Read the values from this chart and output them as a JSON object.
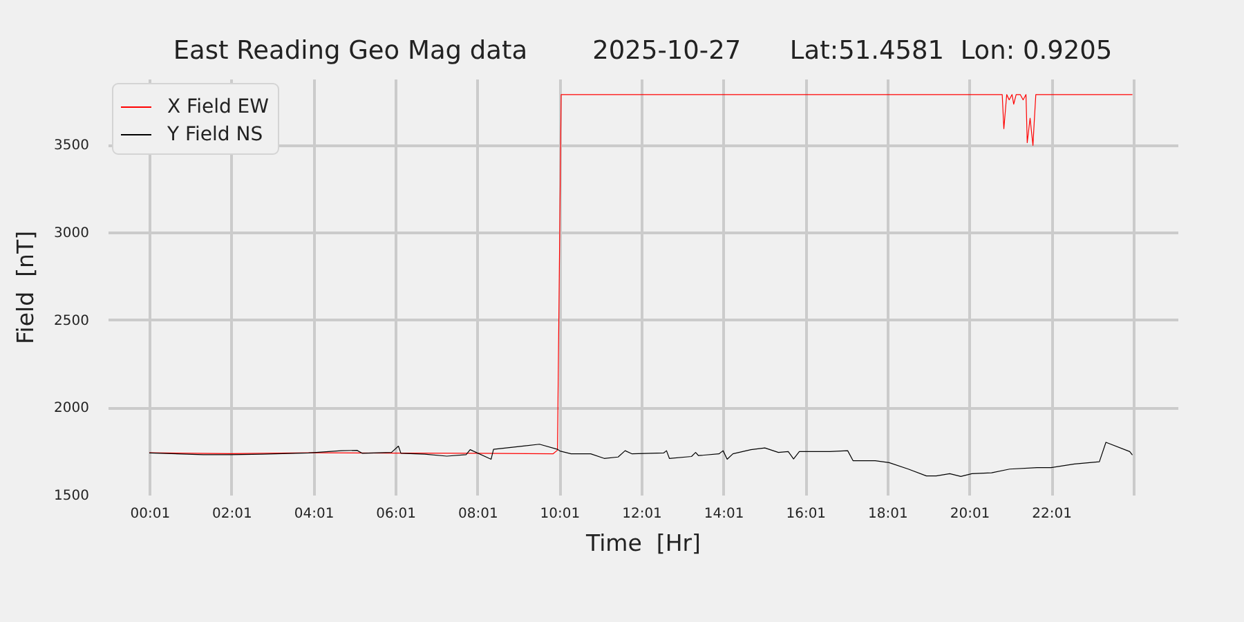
{
  "chart_data": {
    "type": "line",
    "title": "East Reading Geo Mag data        2025-10-27      Lat:51.4581  Lon: 0.9205",
    "xlabel": "Time  [Hr]",
    "ylabel": "Field  [nT]",
    "xlim": [
      -1.0,
      25.1
    ],
    "xticks": [
      {
        "value": 0.0167,
        "label": "00:01"
      },
      {
        "value": 2.0167,
        "label": "02:01"
      },
      {
        "value": 4.0167,
        "label": "04:01"
      },
      {
        "value": 6.0167,
        "label": "06:01"
      },
      {
        "value": 8.0167,
        "label": "08:01"
      },
      {
        "value": 10.0167,
        "label": "10:01"
      },
      {
        "value": 12.0167,
        "label": "12:01"
      },
      {
        "value": 14.0167,
        "label": "14:01"
      },
      {
        "value": 16.0167,
        "label": "16:01"
      },
      {
        "value": 18.0167,
        "label": "18:01"
      },
      {
        "value": 20.0167,
        "label": "20:01"
      },
      {
        "value": 22.0167,
        "label": "22:01"
      },
      {
        "value": 24.0167,
        "label": null
      }
    ],
    "ylim": [
      1500,
      3875
    ],
    "yticks": [
      1500,
      2000,
      2500,
      3000,
      3500
    ],
    "grid": true,
    "legend": "top left",
    "series": [
      {
        "name": "X Field EW",
        "color": "#ff0000",
        "x": [
          0.02,
          2.0,
          4.0,
          6.0,
          8.0,
          9.86,
          9.97,
          10.06,
          12.0,
          16.0,
          20.0,
          20.82,
          20.86,
          20.93,
          20.99,
          21.06,
          21.1,
          21.16,
          21.26,
          21.33,
          21.4,
          21.43,
          21.5,
          21.57,
          21.6,
          21.64,
          22.5,
          23.99
        ],
        "values": [
          1740,
          1735,
          1740,
          1738,
          1737,
          1734,
          1755,
          3785,
          3785,
          3785,
          3785,
          3785,
          3590,
          3785,
          3755,
          3785,
          3730,
          3785,
          3785,
          3755,
          3785,
          3510,
          3650,
          3495,
          3625,
          3785,
          3785,
          3785
        ]
      },
      {
        "name": "Y Field NS",
        "color": "#000000",
        "x": [
          0.02,
          1.33,
          2.01,
          2.78,
          3.9,
          4.7,
          5.08,
          5.21,
          5.92,
          6.09,
          6.15,
          6.73,
          7.27,
          7.74,
          7.84,
          8.35,
          8.41,
          8.95,
          9.53,
          9.97,
          10.03,
          10.3,
          10.78,
          11.11,
          11.45,
          11.62,
          11.79,
          12.56,
          12.63,
          12.7,
          13.24,
          13.34,
          13.41,
          13.91,
          14.01,
          14.11,
          14.25,
          14.69,
          15.03,
          15.36,
          15.6,
          15.73,
          15.87,
          16.61,
          17.05,
          17.18,
          17.72,
          18.06,
          18.53,
          18.97,
          19.21,
          19.54,
          19.81,
          20.08,
          20.56,
          21.0,
          21.67,
          22.01,
          22.58,
          23.19,
          23.35,
          23.93,
          23.99
        ],
        "values": [
          1739,
          1729,
          1729,
          1732,
          1739,
          1752,
          1754,
          1737,
          1742,
          1778,
          1737,
          1732,
          1721,
          1729,
          1758,
          1703,
          1760,
          1774,
          1789,
          1760,
          1750,
          1734,
          1734,
          1708,
          1716,
          1752,
          1734,
          1739,
          1752,
          1708,
          1719,
          1742,
          1724,
          1734,
          1752,
          1703,
          1734,
          1758,
          1768,
          1742,
          1747,
          1705,
          1747,
          1747,
          1752,
          1695,
          1695,
          1684,
          1647,
          1608,
          1608,
          1621,
          1605,
          1621,
          1626,
          1647,
          1655,
          1655,
          1676,
          1689,
          1800,
          1747,
          1729
        ]
      }
    ]
  }
}
